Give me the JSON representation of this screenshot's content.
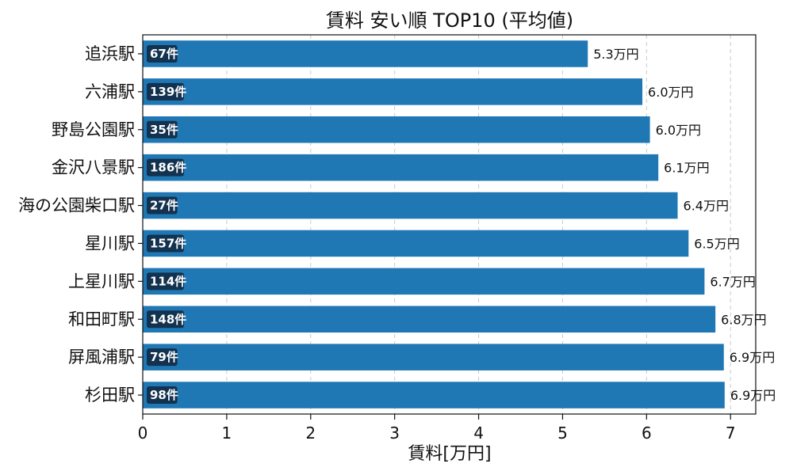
{
  "chart_data": {
    "type": "bar",
    "orientation": "horizontal",
    "title": "賃料 安い順 TOP10 (平均値)",
    "xlabel": "賃料[万円]",
    "ylabel": "",
    "xlim": [
      0,
      7.3
    ],
    "x_ticks": [
      "0",
      "1",
      "2",
      "3",
      "4",
      "5",
      "6",
      "7"
    ],
    "grid": "vertical-dashed",
    "bar_color": "#1f77b4",
    "badge_color": "#12324f",
    "categories": [
      "追浜駅",
      "六浦駅",
      "野島公園駅",
      "金沢八景駅",
      "海の公園柴口駅",
      "星川駅",
      "上星川駅",
      "和田町駅",
      "屏風浦駅",
      "杉田駅"
    ],
    "values": [
      5.3,
      5.95,
      6.04,
      6.14,
      6.37,
      6.5,
      6.69,
      6.82,
      6.92,
      6.93
    ],
    "value_labels": [
      "5.3万円",
      "6.0万円",
      "6.0万円",
      "6.1万円",
      "6.4万円",
      "6.5万円",
      "6.7万円",
      "6.8万円",
      "6.9万円",
      "6.9万円"
    ],
    "count_labels": [
      "67件",
      "139件",
      "35件",
      "186件",
      "27件",
      "157件",
      "114件",
      "148件",
      "79件",
      "98件"
    ]
  }
}
